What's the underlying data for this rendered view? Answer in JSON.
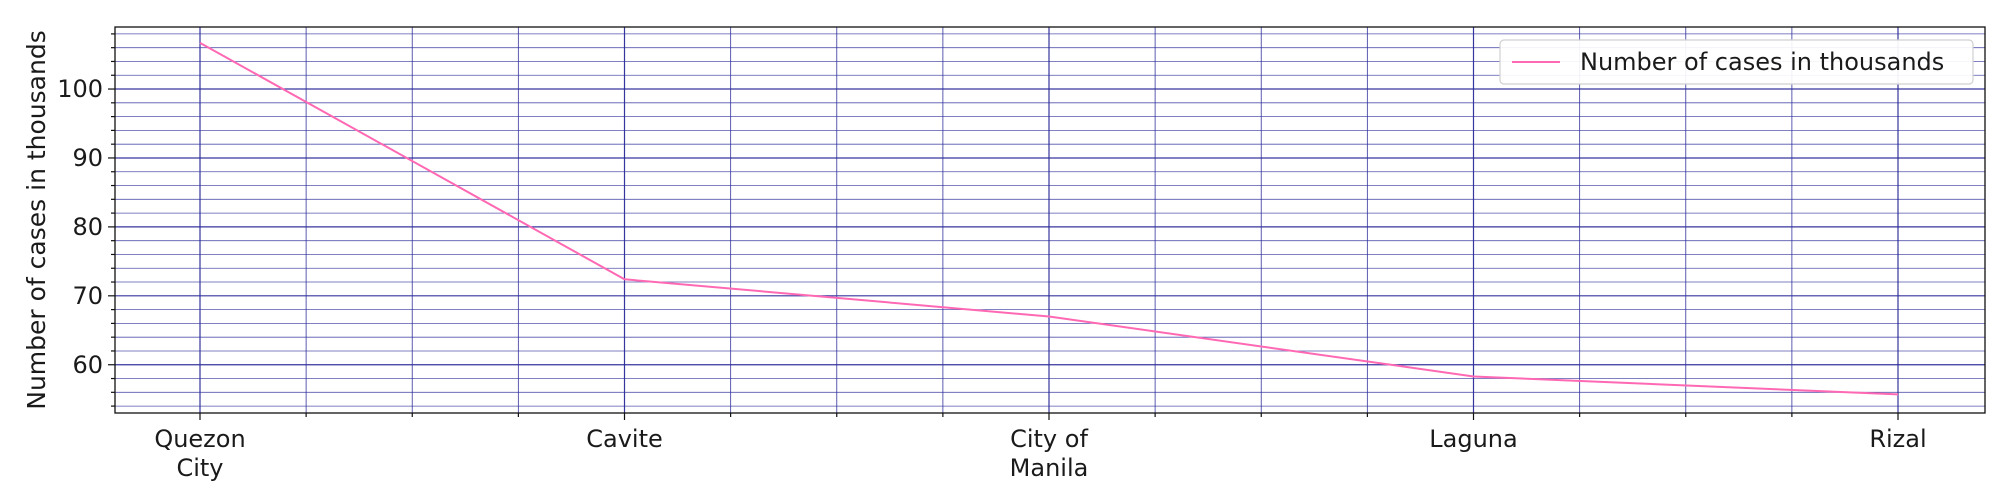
{
  "chart_data": {
    "type": "line",
    "title": "",
    "xlabel": "",
    "ylabel": "Number of cases in thousands",
    "categories": [
      "Quezon\nCity",
      "Cavite",
      "City of\nManila",
      "Laguna",
      "Rizal"
    ],
    "series": [
      {
        "name": "Number of cases in thousands",
        "values": [
          106.7,
          72.4,
          67.0,
          58.3,
          55.7
        ],
        "color": "#ff69b4"
      }
    ],
    "ylim": [
      53.0,
      109.0
    ],
    "yticks": [
      60,
      70,
      80,
      90,
      100
    ],
    "grid": true,
    "grid_color": "#2b2b9a",
    "legend_position": "top-right"
  }
}
